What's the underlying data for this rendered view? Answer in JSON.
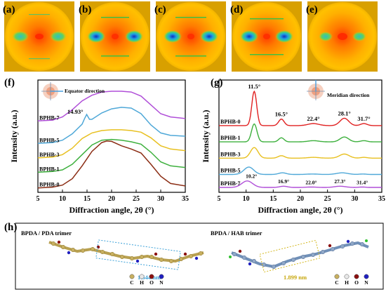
{
  "panel_labels": {
    "a": "(a)",
    "b": "(b)",
    "c": "(c)",
    "d": "(d)",
    "e": "(e)",
    "f": "(f)",
    "g": "(g)",
    "h": "(h)"
  },
  "colors": {
    "BPHB-0": "#8b2d14",
    "BPHB-1": "#3db03d",
    "BPHB-3": "#e8c020",
    "BPHB-5": "#4fa8d8",
    "BPHB-7": "#b04fd8",
    "BPHB-0-g": "#e02020"
  },
  "chart_data": [
    {
      "type": "line",
      "panel": "(f)",
      "inset_label": "Equator direction",
      "xlabel": "Diffraction angle, 2θ (°)",
      "ylabel": "Intensity (a.u.)",
      "xlim": [
        5,
        35
      ],
      "xticks": [
        "5",
        "10",
        "15",
        "20",
        "25",
        "30",
        "35"
      ],
      "annotations": [
        "14.93°"
      ],
      "series": [
        {
          "name": "BPHB-0",
          "x": [
            5,
            8,
            10,
            12,
            14,
            16,
            18,
            19,
            20,
            22,
            24,
            26,
            28,
            30,
            32,
            35
          ],
          "y": [
            0.05,
            0.15,
            0.4,
            1.2,
            2.8,
            4.6,
            5.7,
            5.9,
            5.85,
            5.3,
            4.9,
            4.4,
            3.0,
            1.5,
            0.6,
            0.3
          ]
        },
        {
          "name": "BPHB-1",
          "x": [
            5,
            8,
            10,
            12,
            14,
            16,
            18,
            20,
            22,
            24,
            26,
            28,
            30,
            32,
            35
          ],
          "y": [
            2.0,
            2.1,
            2.3,
            3.0,
            4.2,
            5.4,
            6.0,
            6.1,
            6.0,
            5.8,
            5.5,
            4.5,
            3.3,
            2.8,
            2.6
          ]
        },
        {
          "name": "BPHB-3",
          "x": [
            5,
            8,
            10,
            12,
            14,
            16,
            18,
            20,
            22,
            24,
            26,
            28,
            30,
            32,
            35
          ],
          "y": [
            3.8,
            3.9,
            4.2,
            5.0,
            6.2,
            6.9,
            7.2,
            7.3,
            7.3,
            7.2,
            7.0,
            6.3,
            5.3,
            4.9,
            4.7
          ]
        },
        {
          "name": "BPHB-5",
          "x": [
            5,
            8,
            10,
            12,
            14,
            14.5,
            14.93,
            15.5,
            16,
            18,
            20,
            22,
            24,
            26,
            28,
            30,
            32,
            35
          ],
          "y": [
            5.6,
            5.7,
            6.0,
            6.8,
            8.0,
            8.7,
            9.2,
            8.6,
            8.6,
            9.4,
            9.9,
            10.1,
            10.0,
            9.3,
            7.9,
            6.9,
            6.6,
            6.5
          ]
        },
        {
          "name": "BPHB-7",
          "x": [
            5,
            8,
            10,
            12,
            14,
            16,
            18,
            20,
            22,
            24,
            26,
            28,
            30,
            32,
            35
          ],
          "y": [
            8.4,
            8.5,
            8.9,
            9.8,
            10.9,
            11.6,
            12.0,
            12.1,
            12.1,
            12.0,
            11.5,
            10.4,
            9.3,
            8.9,
            8.7
          ]
        }
      ]
    },
    {
      "type": "line",
      "panel": "(g)",
      "inset_label": "Meridian direction",
      "xlabel": "Diffraction angle, 2θ (°)",
      "ylabel": "Intensity (a.u.)",
      "xlim": [
        5,
        35
      ],
      "xticks": [
        "5",
        "10",
        "15",
        "20",
        "25",
        "30",
        "35"
      ],
      "peaks_top": [
        "11.5°",
        "16.5°",
        "22.4°",
        "28.1°",
        "31.7°"
      ],
      "peaks_bottom": [
        "10.2°",
        "16.9°",
        "22.0°",
        "27.3°",
        "31.4°"
      ],
      "series": [
        {
          "name": "BPHB-0",
          "offset": 8.0,
          "peaks": [
            [
              11.5,
              4.2,
              0.45
            ],
            [
              16.5,
              0.8,
              0.5
            ],
            [
              22.4,
              0.25,
              1.0
            ],
            [
              28.1,
              0.9,
              0.8
            ],
            [
              31.7,
              0.25,
              0.6
            ]
          ]
        },
        {
          "name": "BPHB-1",
          "offset": 6.0,
          "peaks": [
            [
              11.5,
              2.2,
              0.5
            ],
            [
              16.5,
              0.5,
              0.5
            ],
            [
              22.4,
              0.15,
              1.0
            ],
            [
              28.1,
              0.6,
              0.8
            ],
            [
              31.7,
              0.15,
              0.6
            ]
          ]
        },
        {
          "name": "BPHB-3",
          "offset": 4.0,
          "peaks": [
            [
              11.5,
              1.3,
              0.7
            ],
            [
              16.5,
              0.3,
              0.6
            ],
            [
              22.4,
              0.1,
              1.0
            ],
            [
              28.1,
              0.5,
              0.9
            ],
            [
              31.7,
              0.1,
              0.6
            ]
          ]
        },
        {
          "name": "BPHB-5",
          "offset": 2.0,
          "peaks": [
            [
              10.5,
              0.9,
              0.9
            ],
            [
              16.7,
              0.2,
              0.7
            ],
            [
              22.2,
              0.05,
              1.0
            ],
            [
              27.7,
              0.2,
              1.0
            ],
            [
              31.5,
              0.05,
              0.6
            ]
          ]
        },
        {
          "name": "BPHB-7",
          "offset": 0.4,
          "peaks": [
            [
              10.2,
              0.8,
              1.0
            ],
            [
              16.9,
              0.15,
              0.7
            ],
            [
              22.0,
              0.05,
              1.0
            ],
            [
              27.3,
              0.15,
              1.0
            ],
            [
              31.4,
              0.05,
              0.6
            ]
          ]
        }
      ]
    }
  ],
  "panel_h": {
    "left_title": "BPDA / PDA trimer",
    "right_title": "BPDA / HAB trimer",
    "left_length": "1.544 nm",
    "right_length": "1.899 nm",
    "legend": [
      {
        "label": "C",
        "color": "#c8b060"
      },
      {
        "label": "H",
        "color": "#e8e8e8"
      },
      {
        "label": "O",
        "color": "#8b1010"
      },
      {
        "label": "N",
        "color": "#2020c0"
      }
    ]
  }
}
